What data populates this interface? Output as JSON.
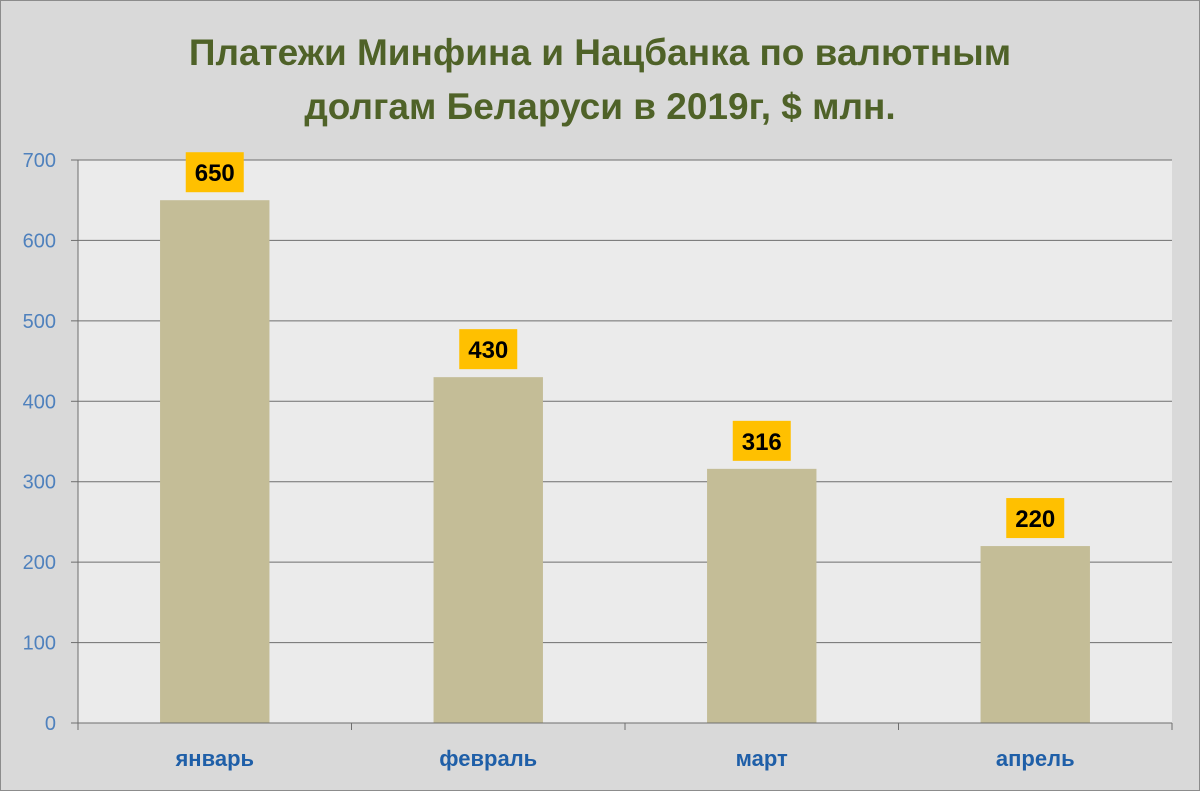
{
  "chart_data": {
    "type": "bar",
    "title_lines": [
      "Платежи Минфина и Нацбанка по валютным",
      "долгам Беларуси в 2019г, $ млн."
    ],
    "categories": [
      "январь",
      "февраль",
      "март",
      "апрель"
    ],
    "values": [
      650,
      430,
      316,
      220
    ],
    "data_labels": [
      "650",
      "430",
      "316",
      "220"
    ],
    "xlabel": "",
    "ylabel": "",
    "ylim": [
      0,
      700
    ],
    "yticks": [
      0,
      100,
      200,
      300,
      400,
      500,
      600,
      700
    ],
    "grid": true,
    "legend": "none",
    "colors": {
      "bar": "#c4bd97",
      "data_label_bg": "#ffc000",
      "plot_bg": "#ebebeb",
      "page_bg": "#d9d9d9",
      "grid": "#6e6e6e",
      "title": "#4f6228",
      "tick_text": "#4f81bd",
      "category_text": "#1f5fa8"
    }
  }
}
